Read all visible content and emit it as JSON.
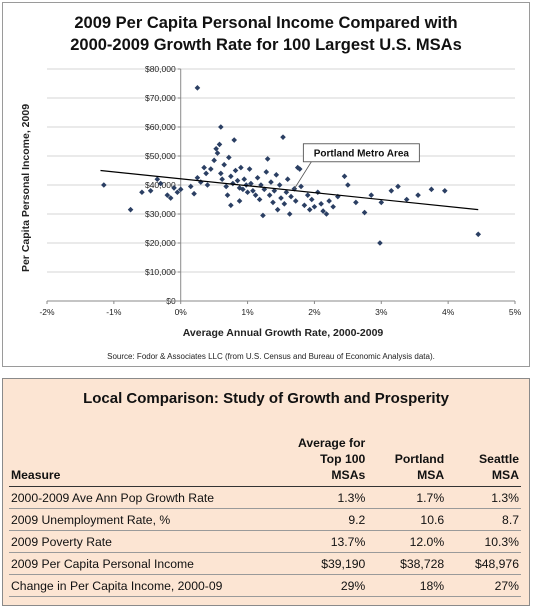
{
  "chart_data": {
    "type": "scatter",
    "title": "2009 Per Capita Personal Income Compared with",
    "title_line2": "2000-2009 Growth Rate for 100 Largest U.S. MSAs",
    "xlabel": "Average Annual Growth Rate, 2000-2009",
    "ylabel": "Per Capita Personal Income, 2009",
    "xlim": [
      -0.02,
      0.05
    ],
    "ylim": [
      0,
      80000
    ],
    "x_ticks": [
      -0.02,
      -0.01,
      0,
      0.01,
      0.02,
      0.03,
      0.04,
      0.05
    ],
    "x_tick_labels": [
      "-2%",
      "-1%",
      "0%",
      "1%",
      "2%",
      "3%",
      "4%",
      "5%"
    ],
    "y_ticks": [
      0,
      10000,
      20000,
      30000,
      40000,
      50000,
      60000,
      70000,
      80000
    ],
    "y_tick_labels": [
      "$0",
      "$10,000",
      "$20,000",
      "$30,000",
      "$40,000",
      "$50,000",
      "$60,000",
      "$70,000",
      "$80,000"
    ],
    "grid": "horizontal",
    "marker_color": "#2b3f63",
    "trendline": {
      "type": "linear",
      "x": [
        -0.012,
        0.0445
      ],
      "y": [
        45000,
        31500
      ],
      "color": "#000000"
    },
    "annotation": {
      "text": "Portland Metro Area",
      "x": 0.017,
      "y": 38700
    },
    "source": "Source: Fodor & Associates LLC (from U.S. Census and Bureau of Economic Analysis data).",
    "points": [
      [
        -0.0115,
        40000
      ],
      [
        -0.0075,
        31500
      ],
      [
        -0.0058,
        37500
      ],
      [
        -0.0045,
        38000
      ],
      [
        -0.0035,
        42000
      ],
      [
        -0.003,
        40500
      ],
      [
        -0.002,
        36500
      ],
      [
        -0.0015,
        35500
      ],
      [
        -0.001,
        39000
      ],
      [
        -0.0005,
        37500
      ],
      [
        0.0,
        38500
      ],
      [
        0.0015,
        39500
      ],
      [
        0.002,
        37000
      ],
      [
        0.0025,
        42500
      ],
      [
        0.003,
        41000
      ],
      [
        0.0025,
        73500
      ],
      [
        0.0035,
        46000
      ],
      [
        0.0038,
        44000
      ],
      [
        0.004,
        40000
      ],
      [
        0.0045,
        45500
      ],
      [
        0.005,
        48500
      ],
      [
        0.0053,
        52500
      ],
      [
        0.0055,
        51000
      ],
      [
        0.0058,
        54000
      ],
      [
        0.006,
        60000
      ],
      [
        0.006,
        44000
      ],
      [
        0.0062,
        42000
      ],
      [
        0.0065,
        47000
      ],
      [
        0.0068,
        39500
      ],
      [
        0.007,
        36500
      ],
      [
        0.0072,
        49500
      ],
      [
        0.0075,
        43000
      ],
      [
        0.0078,
        40500
      ],
      [
        0.008,
        55500
      ],
      [
        0.0082,
        45000
      ],
      [
        0.0085,
        41500
      ],
      [
        0.0088,
        39000
      ],
      [
        0.009,
        46000
      ],
      [
        0.0093,
        38500
      ],
      [
        0.0095,
        42000
      ],
      [
        0.0098,
        40000
      ],
      [
        0.0075,
        33000
      ],
      [
        0.0088,
        34500
      ],
      [
        0.01,
        37500
      ],
      [
        0.0103,
        45500
      ],
      [
        0.0105,
        40500
      ],
      [
        0.0108,
        38000
      ],
      [
        0.0112,
        36500
      ],
      [
        0.0115,
        42500
      ],
      [
        0.0118,
        35000
      ],
      [
        0.012,
        40000
      ],
      [
        0.0123,
        29500
      ],
      [
        0.0125,
        38500
      ],
      [
        0.0128,
        44500
      ],
      [
        0.013,
        49000
      ],
      [
        0.0133,
        36500
      ],
      [
        0.0135,
        41000
      ],
      [
        0.0138,
        34000
      ],
      [
        0.014,
        38000
      ],
      [
        0.0143,
        43500
      ],
      [
        0.0145,
        31500
      ],
      [
        0.0148,
        40000
      ],
      [
        0.015,
        35500
      ],
      [
        0.0153,
        56500
      ],
      [
        0.0155,
        33500
      ],
      [
        0.0158,
        37500
      ],
      [
        0.016,
        42000
      ],
      [
        0.0163,
        30000
      ],
      [
        0.0165,
        36000
      ],
      [
        0.017,
        38700
      ],
      [
        0.0172,
        34500
      ],
      [
        0.0175,
        46000
      ],
      [
        0.0178,
        45500
      ],
      [
        0.018,
        39500
      ],
      [
        0.0185,
        33000
      ],
      [
        0.019,
        36500
      ],
      [
        0.0193,
        31500
      ],
      [
        0.0196,
        35000
      ],
      [
        0.02,
        32500
      ],
      [
        0.0205,
        37500
      ],
      [
        0.021,
        33500
      ],
      [
        0.0213,
        31000
      ],
      [
        0.0218,
        30000
      ],
      [
        0.0222,
        34500
      ],
      [
        0.0228,
        32500
      ],
      [
        0.0235,
        36000
      ],
      [
        0.0245,
        43000
      ],
      [
        0.025,
        40000
      ],
      [
        0.0262,
        34000
      ],
      [
        0.0275,
        30500
      ],
      [
        0.0285,
        36500
      ],
      [
        0.0298,
        20000
      ],
      [
        0.03,
        34000
      ],
      [
        0.0315,
        38000
      ],
      [
        0.0325,
        39500
      ],
      [
        0.0338,
        35000
      ],
      [
        0.0355,
        36500
      ],
      [
        0.0375,
        38500
      ],
      [
        0.0395,
        38000
      ],
      [
        0.0445,
        23000
      ]
    ]
  },
  "table": {
    "title": "Local Comparison: Study of Growth and Prosperity",
    "headers": {
      "measure": "Measure",
      "top100_line1": "Average for",
      "top100_line2": "Top 100",
      "top100_line3": "MSAs",
      "portland_line1": "Portland",
      "portland_line2": "MSA",
      "seattle_line1": "Seattle",
      "seattle_line2": "MSA"
    },
    "rows": [
      {
        "measure": "2000-2009 Ave Ann Pop Growth Rate",
        "top100": "1.3%",
        "portland": "1.7%",
        "seattle": "1.3%"
      },
      {
        "measure": "2009 Unemployment Rate, %",
        "top100": "9.2",
        "portland": "10.6",
        "seattle": "8.7"
      },
      {
        "measure": "2009 Poverty Rate",
        "top100": "13.7%",
        "portland": "12.0%",
        "seattle": "10.3%"
      },
      {
        "measure": "2009 Per Capita Personal Income",
        "top100": "$39,190",
        "portland": "$38,728",
        "seattle": "$48,976"
      },
      {
        "measure": "Change in Per Capita Income, 2000-09",
        "top100": "29%",
        "portland": "18%",
        "seattle": "27%"
      }
    ]
  }
}
